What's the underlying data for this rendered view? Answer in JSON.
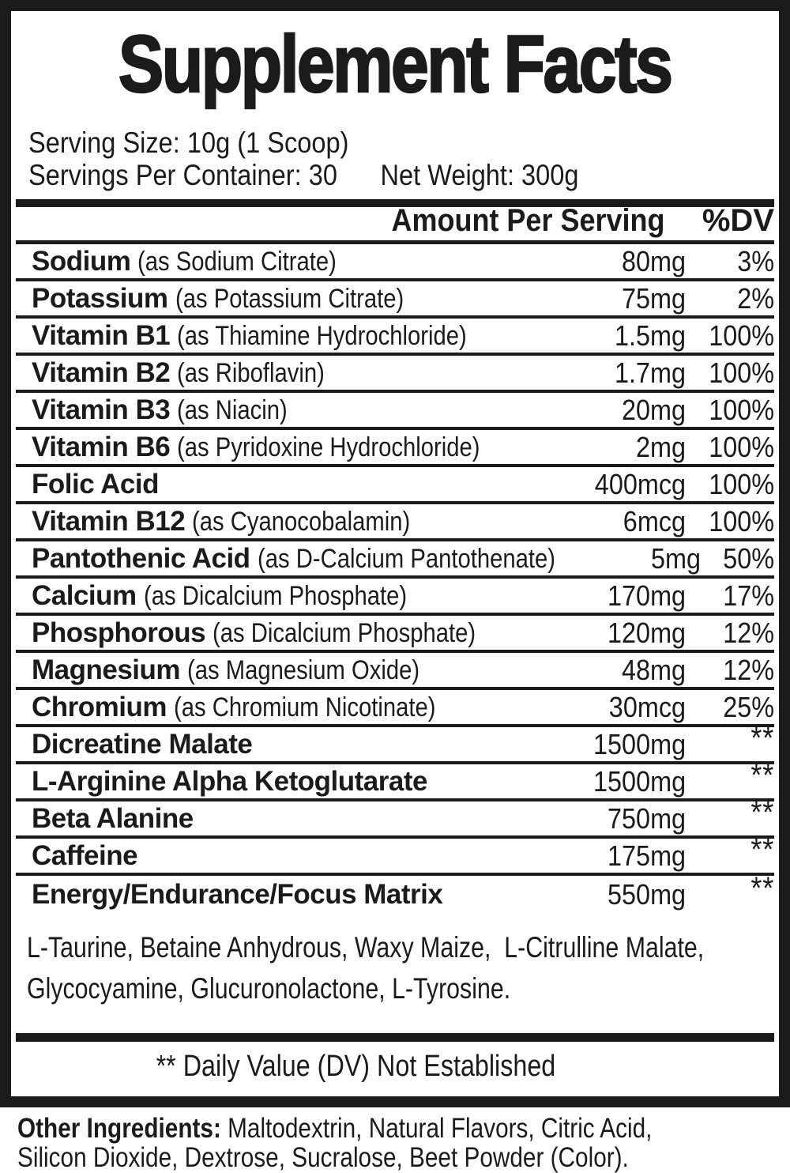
{
  "label": {
    "title": "Supplement Facts",
    "serving_size": "Serving Size: 10g (1 Scoop)",
    "servings_per_container": "Servings Per Container: 30",
    "net_weight": "Net Weight: 300g",
    "header": {
      "amount": "Amount Per Serving",
      "dv": "%DV"
    },
    "rows": [
      {
        "name": "Sodium",
        "desc": "(as Sodium Citrate)",
        "amount": "80mg",
        "dv": "3%"
      },
      {
        "name": "Potassium",
        "desc": "(as Potassium Citrate)",
        "amount": "75mg",
        "dv": "2%"
      },
      {
        "name": "Vitamin B1",
        "desc": "(as Thiamine Hydrochloride)",
        "amount": "1.5mg",
        "dv": "100%"
      },
      {
        "name": "Vitamin B2",
        "desc": "(as Riboflavin)",
        "amount": "1.7mg",
        "dv": "100%"
      },
      {
        "name": "Vitamin B3",
        "desc": "(as Niacin)",
        "amount": "20mg",
        "dv": "100%"
      },
      {
        "name": "Vitamin B6",
        "desc": "(as Pyridoxine Hydrochloride)",
        "amount": "2mg",
        "dv": "100%"
      },
      {
        "name": "Folic Acid",
        "desc": "",
        "amount": "400mcg",
        "dv": "100%"
      },
      {
        "name": "Vitamin B12",
        "desc": "(as Cyanocobalamin)",
        "amount": "6mcg",
        "dv": "100%"
      },
      {
        "name": "Pantothenic Acid",
        "desc": "(as D-Calcium Pantothenate)",
        "amount": "5mg",
        "dv": "50%"
      },
      {
        "name": "Calcium",
        "desc": "(as Dicalcium Phosphate)",
        "amount": "170mg",
        "dv": "17%"
      },
      {
        "name": "Phosphorous",
        "desc": "(as Dicalcium Phosphate)",
        "amount": "120mg",
        "dv": "12%"
      },
      {
        "name": "Magnesium",
        "desc": "(as Magnesium Oxide)",
        "amount": "48mg",
        "dv": "12%"
      },
      {
        "name": "Chromium",
        "desc": "(as Chromium Nicotinate)",
        "amount": "30mcg",
        "dv": "25%"
      },
      {
        "name": "Dicreatine Malate",
        "desc": "",
        "amount": "1500mg",
        "dv": "**"
      },
      {
        "name": "L-Arginine Alpha Ketoglutarate",
        "desc": "",
        "amount": "1500mg",
        "dv": "**"
      },
      {
        "name": "Beta Alanine",
        "desc": "",
        "amount": "750mg",
        "dv": "**"
      },
      {
        "name": "Caffeine",
        "desc": "",
        "amount": "175mg",
        "dv": "**"
      },
      {
        "name": "Energy/Endurance/Focus Matrix",
        "desc": "",
        "amount": "550mg",
        "dv": "**"
      }
    ],
    "matrix_ingredients": "L-Taurine, Betaine Anhydrous, Waxy Maize,  L-Citrulline Malate,\nGlycocyamine, Glucuronolactone, L-Tyrosine.",
    "footnote": "** Daily Value (DV) Not Established",
    "other_ingredients_label": "Other Ingredients:",
    "other_ingredients": " Maltodextrin, Natural Flavors, Citric Acid,\nSilicon Dioxide, Dextrose, Sucralose, Beet Powder (Color)."
  }
}
